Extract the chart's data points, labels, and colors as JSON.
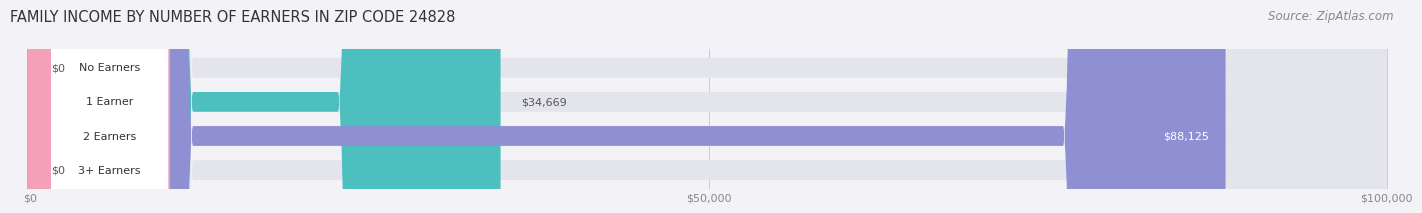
{
  "title": "FAMILY INCOME BY NUMBER OF EARNERS IN ZIP CODE 24828",
  "source": "Source: ZipAtlas.com",
  "categories": [
    "No Earners",
    "1 Earner",
    "2 Earners",
    "3+ Earners"
  ],
  "values": [
    0,
    34669,
    88125,
    0
  ],
  "bar_colors": [
    "#c9a8d8",
    "#4dbfbf",
    "#8f8fd4",
    "#f4a0b8"
  ],
  "value_labels": [
    "$0",
    "$34,669",
    "$88,125",
    "$0"
  ],
  "value_label_inside": [
    false,
    false,
    true,
    false
  ],
  "xlim_max": 100000,
  "xticks": [
    0,
    50000,
    100000
  ],
  "xticklabels": [
    "$0",
    "$50,000",
    "$100,000"
  ],
  "background_color": "#f2f2f7",
  "bar_bg_color": "#e4e4ec",
  "title_fontsize": 10.5,
  "source_fontsize": 8.5,
  "title_color": "#333333",
  "source_color": "#888888",
  "tick_color": "#888888",
  "value_label_fontsize": 8,
  "cat_label_fontsize": 8
}
